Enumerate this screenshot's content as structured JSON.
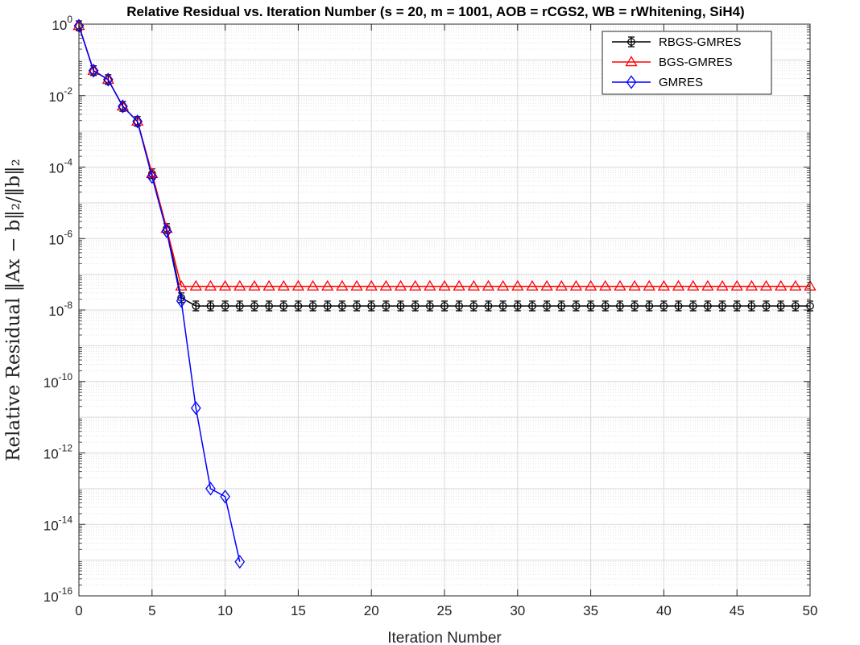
{
  "chart_data": {
    "type": "line",
    "title": "Relative Residual vs. Iteration Number (s = 20, m = 1001, AOB = rCGS2, WB = rWhitening, SiH4)",
    "xlabel": "Iteration Number",
    "ylabel": "Relative Residual ‖Ax − b‖₂/‖b‖₂",
    "xlim": [
      0,
      50
    ],
    "ylim": [
      1e-16,
      1
    ],
    "yscale": "log",
    "grid": true,
    "minor_grid": true,
    "legend_position": "top-right",
    "x_ticks": [
      "0",
      "5",
      "10",
      "15",
      "20",
      "25",
      "30",
      "35",
      "40",
      "45",
      "50"
    ],
    "y_ticks": [
      {
        "base": "10",
        "exp": "0"
      },
      {
        "base": "10",
        "exp": "-2"
      },
      {
        "base": "10",
        "exp": "-4"
      },
      {
        "base": "10",
        "exp": "-6"
      },
      {
        "base": "10",
        "exp": "-8"
      },
      {
        "base": "10",
        "exp": "-10"
      },
      {
        "base": "10",
        "exp": "-12"
      },
      {
        "base": "10",
        "exp": "-14"
      },
      {
        "base": "10",
        "exp": "-16"
      }
    ],
    "series": [
      {
        "name": "RBGS-GMRES",
        "color": "#000000",
        "marker": "circle-errorbar",
        "x": [
          0,
          1,
          2,
          3,
          4,
          5,
          6,
          7,
          8,
          9,
          10,
          11,
          12,
          13,
          14,
          15,
          16,
          17,
          18,
          19,
          20,
          21,
          22,
          23,
          24,
          25,
          26,
          27,
          28,
          29,
          30,
          31,
          32,
          33,
          34,
          35,
          36,
          37,
          38,
          39,
          40,
          41,
          42,
          43,
          44,
          45,
          46,
          47,
          48,
          49,
          50
        ],
        "y": [
          0.9,
          0.05,
          0.028,
          0.005,
          0.0019,
          6.5e-05,
          1.9e-06,
          2.2e-08,
          1.3e-08,
          1.3e-08,
          1.3e-08,
          1.3e-08,
          1.3e-08,
          1.3e-08,
          1.3e-08,
          1.3e-08,
          1.3e-08,
          1.3e-08,
          1.3e-08,
          1.3e-08,
          1.3e-08,
          1.3e-08,
          1.3e-08,
          1.3e-08,
          1.3e-08,
          1.3e-08,
          1.3e-08,
          1.3e-08,
          1.3e-08,
          1.3e-08,
          1.3e-08,
          1.3e-08,
          1.3e-08,
          1.3e-08,
          1.3e-08,
          1.3e-08,
          1.3e-08,
          1.3e-08,
          1.3e-08,
          1.3e-08,
          1.3e-08,
          1.3e-08,
          1.3e-08,
          1.3e-08,
          1.3e-08,
          1.3e-08,
          1.3e-08,
          1.3e-08,
          1.3e-08,
          1.3e-08,
          1.3e-08
        ]
      },
      {
        "name": "BGS-GMRES",
        "color": "#ff0000",
        "marker": "triangle",
        "x": [
          0,
          1,
          2,
          3,
          4,
          5,
          6,
          7,
          8,
          9,
          10,
          11,
          12,
          13,
          14,
          15,
          16,
          17,
          18,
          19,
          20,
          21,
          22,
          23,
          24,
          25,
          26,
          27,
          28,
          29,
          30,
          31,
          32,
          33,
          34,
          35,
          36,
          37,
          38,
          39,
          40,
          41,
          42,
          43,
          44,
          45,
          46,
          47,
          48,
          49,
          50
        ],
        "y": [
          0.9,
          0.05,
          0.028,
          0.005,
          0.0019,
          6.5e-05,
          1.9e-06,
          4.6e-08,
          4.6e-08,
          4.6e-08,
          4.6e-08,
          4.6e-08,
          4.6e-08,
          4.6e-08,
          4.6e-08,
          4.6e-08,
          4.6e-08,
          4.6e-08,
          4.6e-08,
          4.6e-08,
          4.6e-08,
          4.6e-08,
          4.6e-08,
          4.6e-08,
          4.6e-08,
          4.6e-08,
          4.6e-08,
          4.6e-08,
          4.6e-08,
          4.6e-08,
          4.6e-08,
          4.6e-08,
          4.6e-08,
          4.6e-08,
          4.6e-08,
          4.6e-08,
          4.6e-08,
          4.6e-08,
          4.6e-08,
          4.6e-08,
          4.6e-08,
          4.6e-08,
          4.6e-08,
          4.6e-08,
          4.6e-08,
          4.6e-08,
          4.6e-08,
          4.6e-08,
          4.6e-08,
          4.6e-08,
          4.6e-08
        ]
      },
      {
        "name": "GMRES",
        "color": "#0000ff",
        "marker": "diamond",
        "x": [
          0,
          1,
          2,
          3,
          4,
          5,
          6,
          7,
          8,
          9,
          10,
          11
        ],
        "y": [
          0.9,
          0.05,
          0.028,
          0.005,
          0.0019,
          5.3e-05,
          1.6e-06,
          1.8e-08,
          1.8e-11,
          1e-13,
          6e-14,
          9e-16
        ]
      }
    ]
  }
}
